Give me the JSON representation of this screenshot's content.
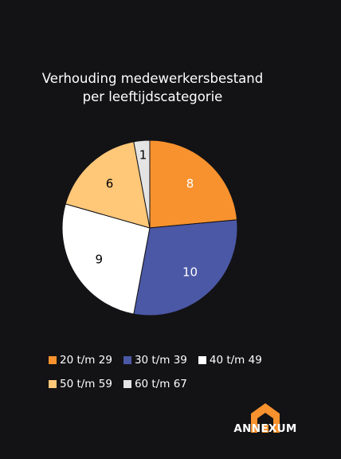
{
  "chart_data": {
    "type": "pie",
    "title": "Verhouding medewerkersbestand",
    "subtitle": "per leeftijdscategorie",
    "categories": [
      "20 t/m 29",
      "30 t/m 39",
      "40 t/m 49",
      "50 t/m 59",
      "60 t/m 67"
    ],
    "values": [
      8,
      10,
      9,
      6,
      1
    ],
    "colors": [
      "#f7922e",
      "#4b58a6",
      "#ffffff",
      "#ffc778",
      "#e4e4e4"
    ],
    "label_colors": [
      "#ffffff",
      "#ffffff",
      "#000000",
      "#000000",
      "#000000"
    ],
    "legend_position": "bottom"
  },
  "logo": {
    "text": "ANNEXUM",
    "color": "#f7922e"
  }
}
